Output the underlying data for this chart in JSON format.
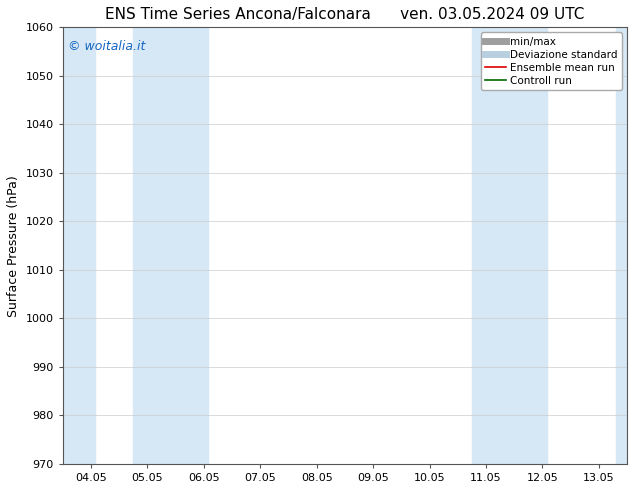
{
  "title_left": "ENS Time Series Ancona/Falconara",
  "title_right": "ven. 03.05.2024 09 UTC",
  "ylabel": "Surface Pressure (hPa)",
  "ylim": [
    970,
    1060
  ],
  "yticks": [
    970,
    980,
    990,
    1000,
    1010,
    1020,
    1030,
    1040,
    1050,
    1060
  ],
  "xtick_labels": [
    "04.05",
    "05.05",
    "06.05",
    "07.05",
    "08.05",
    "09.05",
    "10.05",
    "11.05",
    "12.05",
    "13.05"
  ],
  "xtick_positions": [
    0,
    1,
    2,
    3,
    4,
    5,
    6,
    7,
    8,
    9
  ],
  "xlim": [
    -0.5,
    9.5
  ],
  "shaded_bands": [
    {
      "xmin": -0.5,
      "xmax": 0.08
    },
    {
      "xmin": 0.75,
      "xmax": 2.08
    },
    {
      "xmin": 6.75,
      "xmax": 8.08
    },
    {
      "xmin": 9.3,
      "xmax": 9.5
    }
  ],
  "band_color": "#d6e8f5",
  "watermark": "© woitalia.it",
  "watermark_color": "#1565c0",
  "legend_items": [
    {
      "label": "min/max",
      "color": "#9e9e9e",
      "lw": 5,
      "style": "solid"
    },
    {
      "label": "Deviazione standard",
      "color": "#b8cfe0",
      "lw": 5,
      "style": "solid"
    },
    {
      "label": "Ensemble mean run",
      "color": "#dd0000",
      "lw": 1.2,
      "style": "solid"
    },
    {
      "label": "Controll run",
      "color": "#006600",
      "lw": 1.2,
      "style": "solid"
    }
  ],
  "bg_color": "#ffffff",
  "grid_color": "#cccccc",
  "title_fontsize": 11,
  "tick_fontsize": 8,
  "ylabel_fontsize": 9,
  "watermark_fontsize": 9,
  "legend_fontsize": 7.5
}
